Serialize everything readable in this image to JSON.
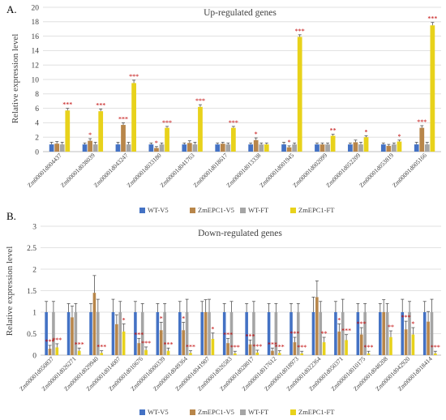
{
  "colors": {
    "series": [
      "#4472C4",
      "#B8864A",
      "#A5A5A5",
      "#E8D21B"
    ],
    "grid": "#D9D9D9",
    "axis": "#BFBFBF",
    "text": "#404040"
  },
  "legend": [
    "WT-V5",
    "ZmEPC1-V5",
    "WT-FT",
    "ZmEPC1-FT"
  ],
  "chart_data": [
    {
      "panel": "A.",
      "type": "bar",
      "title": "Up-regulated genes",
      "ylabel": "Relative expression level",
      "ylim": [
        0,
        20
      ],
      "yticks": [
        0,
        2,
        4,
        6,
        8,
        10,
        12,
        14,
        16,
        18,
        20
      ],
      "ytick_labels": [
        "0",
        "2",
        "4",
        "6",
        "8",
        "10",
        "12",
        "14",
        "16",
        "18",
        "20"
      ],
      "grid": true,
      "legend_position": "bottom",
      "categories": [
        "Zm00001d004437",
        "Zm00001d038039",
        "Zm00001d043247",
        "Zm00001d033180",
        "Zm00001d041763",
        "Zm00001d018617",
        "Zm00001d013338",
        "Zm00001d001945",
        "Zm00001d002099",
        "Zm00001d052209",
        "Zm00001d053819",
        "Zm00001d005166"
      ],
      "series": [
        {
          "name": "WT-V5",
          "values": [
            1,
            1,
            1,
            1,
            1,
            1,
            1,
            1,
            1,
            1,
            1,
            1
          ],
          "errors": [
            0.3,
            0.2,
            0.3,
            0.2,
            0.2,
            0.2,
            0.2,
            0.3,
            0.2,
            0.2,
            0.2,
            0.3
          ]
        },
        {
          "name": "ZmEPC1-V5",
          "values": [
            1.1,
            1.5,
            3.7,
            0.5,
            1.2,
            1.1,
            1.6,
            0.6,
            1.0,
            1.3,
            0.8,
            3.3
          ],
          "errors": [
            0.3,
            0.3,
            0.3,
            0.2,
            0.3,
            0.2,
            0.3,
            0.2,
            0.2,
            0.3,
            0.2,
            0.3
          ]
        },
        {
          "name": "WT-FT",
          "values": [
            1,
            1,
            1,
            1,
            1,
            1,
            1,
            1,
            1,
            1,
            1,
            1
          ],
          "errors": [
            0.3,
            0.3,
            0.3,
            0.2,
            0.3,
            0.2,
            0.2,
            0.2,
            0.2,
            0.3,
            0.2,
            0.3
          ]
        },
        {
          "name": "ZmEPC1-FT",
          "values": [
            5.7,
            5.6,
            9.5,
            3.3,
            6.2,
            3.3,
            1.0,
            15.9,
            2.2,
            2.0,
            1.4,
            17.5
          ],
          "errors": [
            0.3,
            0.3,
            0.4,
            0.2,
            0.3,
            0.2,
            0.2,
            0.3,
            0.2,
            0.2,
            0.2,
            0.4
          ]
        }
      ],
      "annotations": [
        {
          "category": 0,
          "series": 3,
          "text": "***"
        },
        {
          "category": 1,
          "series": 1,
          "text": "*"
        },
        {
          "category": 1,
          "series": 3,
          "text": "***"
        },
        {
          "category": 2,
          "series": 1,
          "text": "***"
        },
        {
          "category": 2,
          "series": 3,
          "text": "***"
        },
        {
          "category": 3,
          "series": 1,
          "text": "*"
        },
        {
          "category": 3,
          "series": 3,
          "text": "***"
        },
        {
          "category": 4,
          "series": 3,
          "text": "***"
        },
        {
          "category": 5,
          "series": 3,
          "text": "***"
        },
        {
          "category": 6,
          "series": 1,
          "text": "*"
        },
        {
          "category": 7,
          "series": 1,
          "text": "*"
        },
        {
          "category": 7,
          "series": 3,
          "text": "***"
        },
        {
          "category": 8,
          "series": 3,
          "text": "**"
        },
        {
          "category": 9,
          "series": 3,
          "text": "*"
        },
        {
          "category": 10,
          "series": 3,
          "text": "*"
        },
        {
          "category": 11,
          "series": 1,
          "text": "***"
        },
        {
          "category": 11,
          "series": 3,
          "text": "***"
        }
      ]
    },
    {
      "panel": "B.",
      "type": "bar",
      "title": "Down-regulated genes",
      "ylabel": "Relative expression level",
      "ylim": [
        0,
        3
      ],
      "yticks": [
        0,
        0.5,
        1,
        1.5,
        2,
        2.5,
        3
      ],
      "ytick_labels": [
        "0",
        "0.5",
        "1",
        "1.5",
        "2",
        "2.5",
        "3"
      ],
      "grid": true,
      "legend_position": "bottom",
      "categories": [
        "Zm00001d050837",
        "Zm00001d026271",
        "Zm00001d029940",
        "Zm00001d014007",
        "Zm00001d010676",
        "Zm00001d000339",
        "Zm00001d049364",
        "Zm00001d041907",
        "Zm00001d026583",
        "Zm00001d028017",
        "Zm00001d017612",
        "Zm00001d018973",
        "Zm00001d022364",
        "Zm00001d050371",
        "Zm00001d010175",
        "Zm00001d048208",
        "Zm00001d042920",
        "Zm00001d018414"
      ],
      "series": [
        {
          "name": "WT-V5",
          "values": [
            1,
            1,
            1,
            1,
            1,
            1,
            1,
            1,
            1,
            1,
            1,
            1,
            1,
            1,
            1,
            1,
            1,
            1
          ],
          "errors": [
            0.25,
            0.2,
            0.2,
            0.3,
            0.25,
            0.2,
            0.25,
            0.25,
            0.2,
            0.2,
            0.2,
            0.2,
            0.35,
            0.25,
            0.2,
            0.2,
            0.3,
            0.25
          ]
        },
        {
          "name": "ZmEPC1-V5",
          "values": [
            0.15,
            0.88,
            1.45,
            0.72,
            0.28,
            0.58,
            0.58,
            1.0,
            0.28,
            0.25,
            0.1,
            0.3,
            1.35,
            0.55,
            0.48,
            1.0,
            0.6,
            0.78
          ]
        },
        {
          "name": "WT-FT",
          "values": [
            1,
            1,
            1,
            1,
            1,
            1,
            1,
            1,
            1,
            1,
            1,
            1,
            1,
            1,
            1,
            1,
            1,
            1
          ],
          "errors": [
            0.25,
            0.2,
            0.3,
            0.25,
            0.2,
            0.2,
            0.3,
            0.3,
            0.25,
            0.25,
            0.2,
            0.2,
            0.25,
            0.3,
            0.2,
            0.2,
            0.25,
            0.3
          ]
        },
        {
          "name": "ZmEPC1-FT",
          "values": [
            0.18,
            0.1,
            0.05,
            0.55,
            0.12,
            0.1,
            0.05,
            0.38,
            0.04,
            0.06,
            0.05,
            0.04,
            0.3,
            0.35,
            0.04,
            0.42,
            0.48,
            0.04
          ]
        }
      ],
      "annotations": [
        {
          "category": 0,
          "series": 1,
          "text": "***"
        },
        {
          "category": 0,
          "series": 3,
          "text": "***"
        },
        {
          "category": 1,
          "series": 3,
          "text": "***"
        },
        {
          "category": 2,
          "series": 3,
          "text": "***"
        },
        {
          "category": 3,
          "series": 3,
          "text": "*"
        },
        {
          "category": 4,
          "series": 1,
          "text": "***"
        },
        {
          "category": 4,
          "series": 3,
          "text": "***"
        },
        {
          "category": 5,
          "series": 1,
          "text": "*"
        },
        {
          "category": 5,
          "series": 3,
          "text": "***"
        },
        {
          "category": 6,
          "series": 1,
          "text": "*"
        },
        {
          "category": 6,
          "series": 3,
          "text": "***"
        },
        {
          "category": 7,
          "series": 3,
          "text": "*"
        },
        {
          "category": 8,
          "series": 1,
          "text": "***"
        },
        {
          "category": 8,
          "series": 3,
          "text": "***"
        },
        {
          "category": 9,
          "series": 1,
          "text": "***"
        },
        {
          "category": 9,
          "series": 3,
          "text": "***"
        },
        {
          "category": 10,
          "series": 1,
          "text": "***"
        },
        {
          "category": 10,
          "series": 3,
          "text": "***"
        },
        {
          "category": 11,
          "series": 1,
          "text": "***"
        },
        {
          "category": 11,
          "series": 3,
          "text": "***"
        },
        {
          "category": 12,
          "series": 3,
          "text": "**"
        },
        {
          "category": 13,
          "series": 1,
          "text": "*"
        },
        {
          "category": 13,
          "series": 3,
          "text": "***"
        },
        {
          "category": 14,
          "series": 1,
          "text": "***"
        },
        {
          "category": 14,
          "series": 3,
          "text": "***"
        },
        {
          "category": 15,
          "series": 3,
          "text": "**"
        },
        {
          "category": 16,
          "series": 1,
          "text": "***"
        },
        {
          "category": 16,
          "series": 3,
          "text": "*"
        },
        {
          "category": 17,
          "series": 3,
          "text": "***"
        }
      ]
    }
  ]
}
